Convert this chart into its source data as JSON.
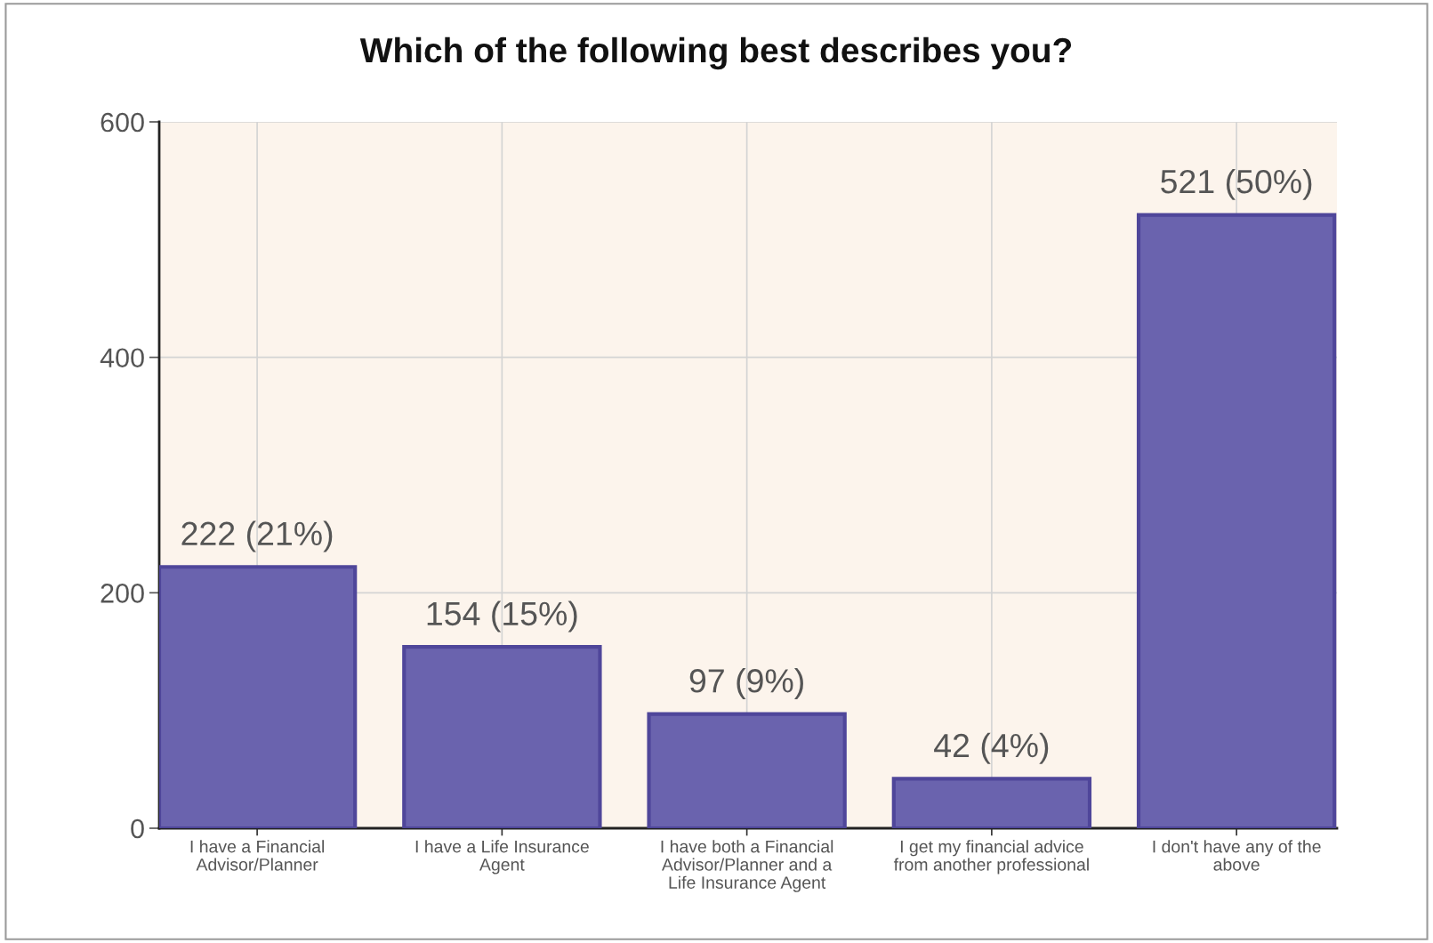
{
  "chart_data": {
    "type": "bar",
    "title": "Which of the following best describes you?",
    "categories": [
      "I have a Financial Advisor/Planner",
      "I have a Life Insurance Agent",
      "I have both a Financial Advisor/Planner and a Life Insurance Agent",
      "I get my financial advice from another professional",
      "I don't have any of the above"
    ],
    "values": [
      222,
      154,
      97,
      42,
      521
    ],
    "color": "#6a63ae",
    "value_labels": [
      "222 (21%)",
      "154 (15%)",
      "97 (9%)",
      "42 (4%)",
      "521 (50%)"
    ],
    "ylim": [
      0,
      600
    ],
    "yticks": [
      0,
      200,
      400,
      600
    ],
    "grid": true,
    "legend": false
  }
}
